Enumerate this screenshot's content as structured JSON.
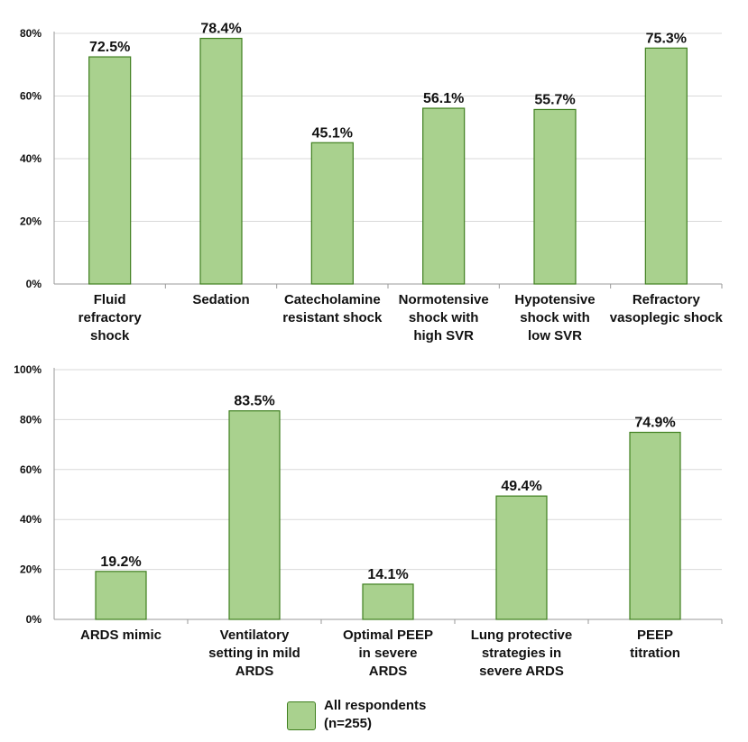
{
  "legend": {
    "line1": "All respondents",
    "line2": "(n=255)",
    "color": "#a9d18e",
    "edge": "#3f7f1f"
  },
  "chart_data": [
    {
      "type": "bar",
      "title": "",
      "xlabel": "",
      "ylabel": "",
      "ylim": [
        0,
        80
      ],
      "yticks": [
        0,
        20,
        40,
        60,
        80
      ],
      "ytick_labels": [
        "0%",
        "20%",
        "40%",
        "60%",
        "80%"
      ],
      "categories": [
        [
          "Fluid",
          "refractory",
          "shock"
        ],
        [
          "Sedation"
        ],
        [
          "Catecholamine",
          "resistant shock"
        ],
        [
          "Normotensive",
          "shock with",
          "high SVR"
        ],
        [
          "Hypotensive",
          "shock with",
          "low SVR"
        ],
        [
          "Refractory",
          "vasoplegic shock"
        ]
      ],
      "series": [
        {
          "name": "All respondents (n=255)",
          "values": [
            72.5,
            78.4,
            45.1,
            56.1,
            55.7,
            75.3
          ]
        }
      ],
      "data_labels": [
        "72.5%",
        "78.4%",
        "45.1%",
        "56.1%",
        "55.7%",
        "75.3%"
      ]
    },
    {
      "type": "bar",
      "title": "",
      "xlabel": "",
      "ylabel": "",
      "ylim": [
        0,
        100
      ],
      "yticks": [
        0,
        20,
        40,
        60,
        80,
        100
      ],
      "ytick_labels": [
        "0%",
        "20%",
        "40%",
        "60%",
        "80%",
        "100%"
      ],
      "categories": [
        [
          "ARDS mimic"
        ],
        [
          "Ventilatory",
          "setting in mild",
          "ARDS"
        ],
        [
          "Optimal PEEP",
          "in severe",
          "ARDS"
        ],
        [
          "Lung protective",
          "strategies in",
          "severe ARDS"
        ],
        [
          "PEEP",
          "titration"
        ]
      ],
      "series": [
        {
          "name": "All respondents (n=255)",
          "values": [
            19.2,
            83.5,
            14.1,
            49.4,
            74.9
          ]
        }
      ],
      "data_labels": [
        "19.2%",
        "83.5%",
        "14.1%",
        "49.4%",
        "74.9%"
      ]
    }
  ]
}
